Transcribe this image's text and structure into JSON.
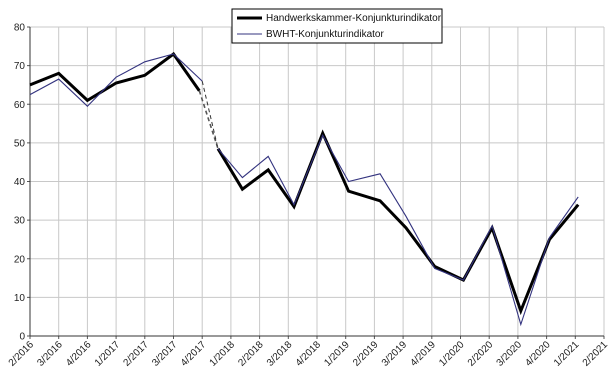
{
  "chart_data": {
    "type": "line",
    "title": "",
    "xlabel": "",
    "ylabel": "",
    "ylim": [
      0,
      80
    ],
    "yticks": [
      0,
      10,
      20,
      30,
      40,
      50,
      60,
      70,
      80
    ],
    "grid": true,
    "legend_position": "top-center",
    "categories": [
      "2/2016",
      "3/2016",
      "4/2016",
      "1/2017",
      "2/2017",
      "3/2017",
      "4/2017",
      "1/2018",
      "2/2018",
      "3/2018",
      "4/2018",
      "1/2019",
      "2/2019",
      "3/2019",
      "4/2019",
      "1/2020",
      "2/2020",
      "3/2020",
      "4/2020",
      "1/2021",
      "2/2021"
    ],
    "series": [
      {
        "name": "Handwerkskammer-Konjunkturindikator",
        "color": "#000000",
        "points": [
          {
            "x": 0,
            "y": 65
          },
          {
            "x": 1,
            "y": 68
          },
          {
            "x": 2,
            "y": 61
          },
          {
            "x": 3,
            "y": 65.5
          },
          {
            "x": 4,
            "y": 67.5
          },
          {
            "x": 5,
            "y": 73
          },
          {
            "x": 5.9,
            "y": 63.5
          },
          {
            "x": 6.55,
            "y": 48.5
          },
          {
            "x": 7.4,
            "y": 38
          },
          {
            "x": 8.3,
            "y": 43
          },
          {
            "x": 9.2,
            "y": 33.5
          },
          {
            "x": 10.2,
            "y": 52.5
          },
          {
            "x": 11.1,
            "y": 37.5
          },
          {
            "x": 12.2,
            "y": 35
          },
          {
            "x": 13.1,
            "y": 28
          },
          {
            "x": 14.1,
            "y": 18
          },
          {
            "x": 15.1,
            "y": 14.5
          },
          {
            "x": 16.1,
            "y": 28
          },
          {
            "x": 17.1,
            "y": 6.5
          },
          {
            "x": 18.1,
            "y": 25
          },
          {
            "x": 19.1,
            "y": 34
          }
        ]
      },
      {
        "name": "BWHT-Konjunkturindikator",
        "color": "#33337f",
        "points": [
          {
            "x": 0,
            "y": 62.5
          },
          {
            "x": 1,
            "y": 66.5
          },
          {
            "x": 2,
            "y": 59.5
          },
          {
            "x": 3,
            "y": 67
          },
          {
            "x": 4,
            "y": 71
          },
          {
            "x": 5,
            "y": 73
          },
          {
            "x": 6,
            "y": 66
          },
          {
            "x": 6.55,
            "y": 48.5
          },
          {
            "x": 7.4,
            "y": 41
          },
          {
            "x": 8.3,
            "y": 46.5
          },
          {
            "x": 9.2,
            "y": 34
          },
          {
            "x": 10.2,
            "y": 52
          },
          {
            "x": 11.1,
            "y": 40
          },
          {
            "x": 12.2,
            "y": 42
          },
          {
            "x": 13.1,
            "y": 31
          },
          {
            "x": 14.1,
            "y": 17.5
          },
          {
            "x": 15.1,
            "y": 14.5
          },
          {
            "x": 16.1,
            "y": 28.5
          },
          {
            "x": 17.1,
            "y": 3
          },
          {
            "x": 18.1,
            "y": 25.5
          },
          {
            "x": 19.1,
            "y": 36
          }
        ]
      }
    ],
    "dashed_segments": [
      {
        "series": 0,
        "from": {
          "x": 5.9,
          "y": 63.5
        },
        "to": {
          "x": 6.55,
          "y": 48.5
        }
      },
      {
        "series": 1,
        "from": {
          "x": 6,
          "y": 66
        },
        "to": {
          "x": 6.55,
          "y": 48.5
        }
      }
    ]
  }
}
